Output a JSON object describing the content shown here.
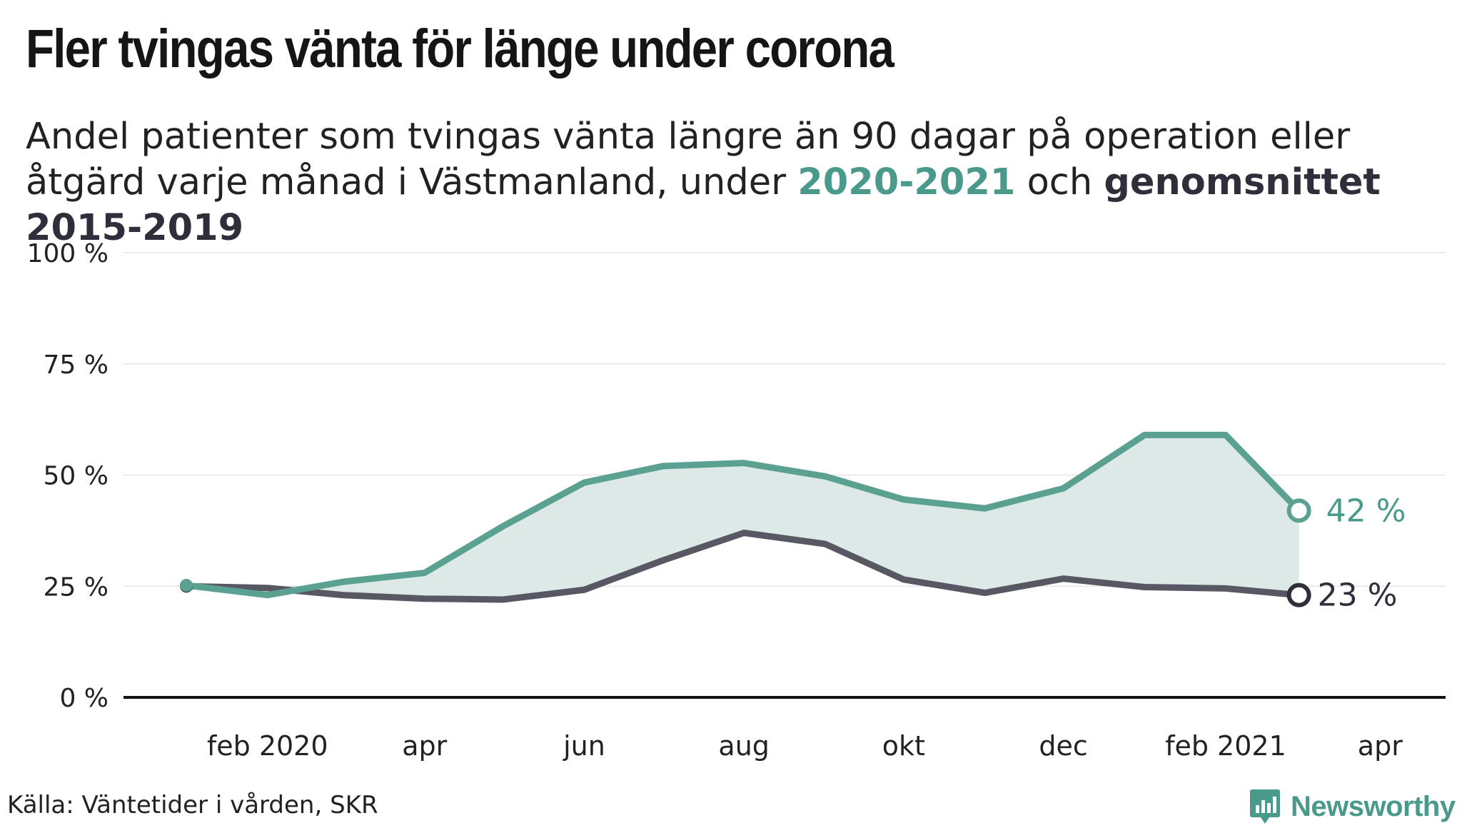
{
  "header": {
    "title": "Fler tvingas vänta för länge under corona",
    "subtitle_pre": "Andel patienter som tvingas vänta längre än 90 dagar på operation eller åtgärd varje månad i Västmanland, under ",
    "subtitle_series1": "2020-2021",
    "subtitle_mid": " och ",
    "subtitle_series2": "genomsnittet 2015-2019"
  },
  "chart_data": {
    "type": "line",
    "x": [
      "2020-01",
      "2020-02",
      "2020-03",
      "2020-04",
      "2020-05",
      "2020-06",
      "2020-07",
      "2020-08",
      "2020-09",
      "2020-10",
      "2020-11",
      "2020-12",
      "2021-01",
      "2021-02",
      "2021-03"
    ],
    "series": [
      {
        "key": "current",
        "color": "#5aa192",
        "values": [
          25.2,
          23.0,
          26.0,
          28.0,
          38.5,
          48.3,
          52.0,
          52.7,
          49.7,
          44.5,
          42.5,
          47.0,
          59.0,
          59.0,
          42.0
        ]
      },
      {
        "key": "average",
        "color": "#575864",
        "values": [
          25.0,
          24.6,
          23.0,
          22.2,
          22.0,
          24.2,
          30.8,
          37.0,
          34.5,
          26.5,
          23.5,
          26.7,
          24.8,
          24.5,
          23.0
        ]
      }
    ],
    "band_fill": "#dce9e6",
    "yticks": [
      0,
      25,
      50,
      75,
      100
    ],
    "ytick_labels": [
      "0 %",
      "25 %",
      "50 %",
      "75 %",
      "100 %"
    ],
    "ylim": [
      0,
      100
    ],
    "xticks": [
      "2020-02",
      "2020-04",
      "2020-06",
      "2020-08",
      "2020-10",
      "2020-12",
      "2021-02",
      "2021-04"
    ],
    "xtick_labels": [
      "feb 2020",
      "apr",
      "jun",
      "aug",
      "okt",
      "dec",
      "feb 2021",
      "apr"
    ],
    "xlim": [
      "2019-12-08",
      "2021-04-26"
    ],
    "end_labels": [
      "42 %",
      "23 %"
    ],
    "grid": true,
    "legend": "in subtitle text"
  },
  "footer": {
    "source": "Källa: Väntetider i vården, SKR",
    "brand": "Newsworthy"
  },
  "colors": {
    "accent": "#4a9a8b",
    "dark": "#2f2f3c"
  }
}
